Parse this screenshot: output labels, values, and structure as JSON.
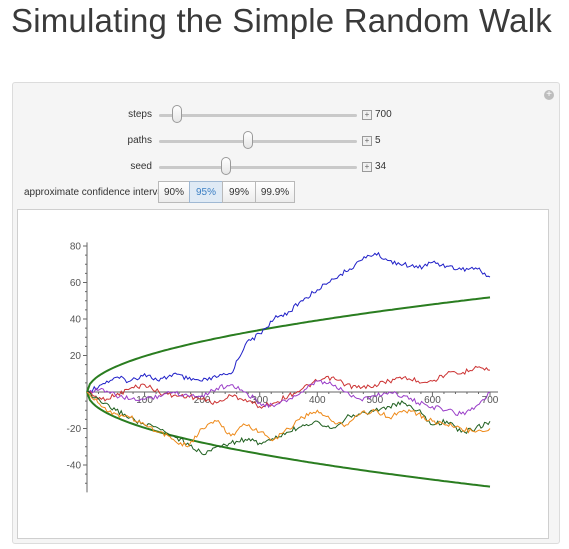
{
  "page": {
    "title": "Simulating the Simple Random Walk"
  },
  "controls": {
    "steps": {
      "label": "steps",
      "value": "700",
      "fraction": 0.09
    },
    "paths": {
      "label": "paths",
      "value": "5",
      "fraction": 0.45
    },
    "seed": {
      "label": "seed",
      "value": "34",
      "fraction": 0.34
    },
    "confidence": {
      "label": "approximate confidence interval",
      "options": [
        "90%",
        "95%",
        "99%",
        "99.9%"
      ],
      "selected": "95%"
    }
  },
  "colors": {
    "bound": "#2a7d20",
    "series": [
      "#2020c8",
      "#cc3333",
      "#9a3ec8",
      "#1f5f1f",
      "#ee8a1a"
    ]
  },
  "chart_data": {
    "type": "line",
    "title": "",
    "xlabel": "",
    "ylabel": "",
    "xlim": [
      0,
      700
    ],
    "ylim": [
      -55,
      82
    ],
    "x_ticks": [
      100,
      200,
      300,
      400,
      500,
      600,
      700
    ],
    "y_ticks": [
      -40,
      -20,
      20,
      40,
      60,
      80
    ],
    "confidence_bound": {
      "z": 1.96,
      "formula": "±z·sqrt(n)",
      "end_values": [
        51.9,
        -51.9
      ]
    },
    "series": [
      {
        "x": [
          0,
          25,
          50,
          75,
          100,
          125,
          150,
          175,
          200,
          225,
          250,
          275,
          300,
          325,
          350,
          375,
          400,
          425,
          450,
          475,
          500,
          525,
          550,
          575,
          600,
          625,
          650,
          675,
          700
        ],
        "y": [
          0,
          4,
          8,
          6,
          10,
          6,
          10,
          7,
          6,
          8,
          10,
          26,
          32,
          40,
          44,
          50,
          56,
          62,
          66,
          72,
          76,
          72,
          70,
          68,
          71,
          69,
          67,
          68,
          63
        ]
      },
      {
        "x": [
          0,
          25,
          50,
          75,
          100,
          125,
          150,
          175,
          200,
          225,
          250,
          275,
          300,
          325,
          350,
          375,
          400,
          425,
          450,
          475,
          500,
          525,
          550,
          575,
          600,
          625,
          650,
          675,
          700
        ],
        "y": [
          0,
          -4,
          -2,
          2,
          4,
          0,
          -2,
          -2,
          -4,
          -6,
          -2,
          -4,
          -8,
          -6,
          -2,
          2,
          6,
          8,
          4,
          2,
          4,
          6,
          8,
          6,
          6,
          10,
          10,
          14,
          12
        ]
      },
      {
        "x": [
          0,
          25,
          50,
          75,
          100,
          125,
          150,
          175,
          200,
          225,
          250,
          275,
          300,
          325,
          350,
          375,
          400,
          425,
          450,
          475,
          500,
          525,
          550,
          575,
          600,
          625,
          650,
          675,
          700
        ],
        "y": [
          0,
          2,
          -2,
          -4,
          -4,
          -2,
          0,
          -2,
          -2,
          2,
          4,
          0,
          -6,
          -8,
          -4,
          0,
          6,
          4,
          0,
          -4,
          -2,
          0,
          -2,
          -6,
          -8,
          -10,
          -12,
          -8,
          0
        ]
      },
      {
        "x": [
          0,
          25,
          50,
          75,
          100,
          125,
          150,
          175,
          200,
          225,
          250,
          275,
          300,
          325,
          350,
          375,
          400,
          425,
          450,
          475,
          500,
          525,
          550,
          575,
          600,
          625,
          650,
          675,
          700
        ],
        "y": [
          0,
          -6,
          -10,
          -14,
          -18,
          -20,
          -24,
          -28,
          -34,
          -30,
          -28,
          -26,
          -28,
          -26,
          -22,
          -18,
          -16,
          -20,
          -14,
          -12,
          -10,
          -8,
          -6,
          -10,
          -18,
          -16,
          -22,
          -20,
          -16
        ]
      },
      {
        "x": [
          0,
          25,
          50,
          75,
          100,
          125,
          150,
          175,
          200,
          225,
          250,
          275,
          300,
          325,
          350,
          375,
          400,
          425,
          450,
          475,
          500,
          525,
          550,
          575,
          600,
          625,
          650,
          675,
          700
        ],
        "y": [
          0,
          -8,
          -12,
          -14,
          -18,
          -22,
          -26,
          -30,
          -20,
          -16,
          -24,
          -18,
          -22,
          -26,
          -20,
          -14,
          -10,
          -16,
          -18,
          -12,
          -10,
          -14,
          -10,
          -12,
          -16,
          -18,
          -20,
          -22,
          -20
        ]
      }
    ]
  }
}
